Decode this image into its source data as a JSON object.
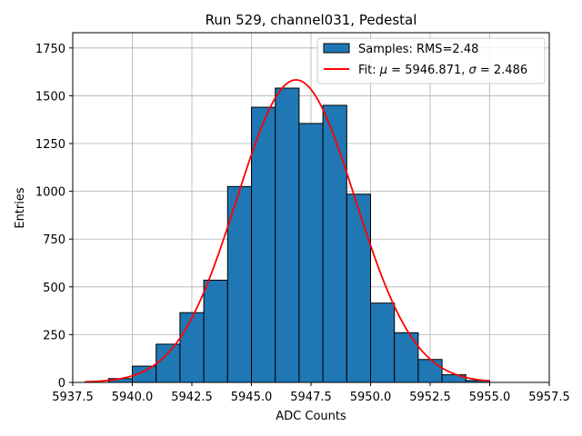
{
  "chart_data": {
    "type": "bar",
    "title": "Run 529, channel031, Pedestal",
    "xlabel": "ADC Counts",
    "ylabel": "Entries",
    "xlim": [
      5937.5,
      5957.5
    ],
    "ylim": [
      0,
      1830
    ],
    "xticks": [
      5937.5,
      5940.0,
      5942.5,
      5945.0,
      5947.5,
      5950.0,
      5952.5,
      5955.0,
      5957.5
    ],
    "xtick_labels": [
      "5937.5",
      "5940.0",
      "5942.5",
      "5945.0",
      "5947.5",
      "5950.0",
      "5952.5",
      "5955.0",
      "5957.5"
    ],
    "yticks": [
      0,
      250,
      500,
      750,
      1000,
      1250,
      1500,
      1750
    ],
    "ytick_labels": [
      "0",
      "250",
      "500",
      "750",
      "1000",
      "1250",
      "1500",
      "1750"
    ],
    "grid": true,
    "legend_position": "top-right",
    "histogram": {
      "name": "Samples: RMS=2.48",
      "color": "#1f77b4",
      "edge_color": "#000000",
      "bins": [
        {
          "start": 5939.0,
          "end": 5940.0,
          "value": 20
        },
        {
          "start": 5940.0,
          "end": 5941.0,
          "value": 85
        },
        {
          "start": 5941.0,
          "end": 5942.0,
          "value": 200
        },
        {
          "start": 5942.0,
          "end": 5943.0,
          "value": 365
        },
        {
          "start": 5943.0,
          "end": 5944.0,
          "value": 535
        },
        {
          "start": 5944.0,
          "end": 5945.0,
          "value": 1025
        },
        {
          "start": 5945.0,
          "end": 5946.0,
          "value": 1440
        },
        {
          "start": 5946.0,
          "end": 5947.0,
          "value": 1540
        },
        {
          "start": 5947.0,
          "end": 5948.0,
          "value": 1355
        },
        {
          "start": 5948.0,
          "end": 5949.0,
          "value": 1450
        },
        {
          "start": 5949.0,
          "end": 5950.0,
          "value": 985
        },
        {
          "start": 5950.0,
          "end": 5951.0,
          "value": 415
        },
        {
          "start": 5951.0,
          "end": 5952.0,
          "value": 260
        },
        {
          "start": 5952.0,
          "end": 5953.0,
          "value": 120
        },
        {
          "start": 5953.0,
          "end": 5954.0,
          "value": 40
        },
        {
          "start": 5954.0,
          "end": 5955.0,
          "value": 10
        }
      ]
    },
    "fit": {
      "name_prefix": "Fit: ",
      "mu_symbol": "μ",
      "mu_text": " = 5946.871, ",
      "sigma_symbol": "σ",
      "sigma_text": " = 2.486",
      "mu": 5946.871,
      "sigma": 2.486,
      "peak": 1583,
      "x_range": [
        5938.0,
        5955.0
      ],
      "color": "#ff0000"
    }
  }
}
